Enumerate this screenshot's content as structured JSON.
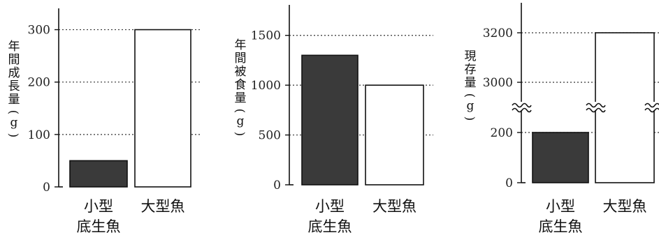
{
  "chart_data": [
    {
      "type": "bar",
      "ylabel": "年間成長量(g)",
      "categories": [
        "小型\n底生魚",
        "大型魚"
      ],
      "values": [
        50,
        300
      ],
      "yticks": [
        0,
        100,
        200,
        300
      ],
      "ylim": [
        0,
        330
      ],
      "fills": [
        "#3a3a3a",
        "#ffffff"
      ],
      "grid": true
    },
    {
      "type": "bar",
      "ylabel": "年間被食量(g)",
      "categories": [
        "小型\n底生魚",
        "大型魚"
      ],
      "values": [
        1300,
        1000
      ],
      "yticks": [
        0,
        500,
        1000,
        1500
      ],
      "ylim": [
        0,
        1750
      ],
      "fills": [
        "#3a3a3a",
        "#ffffff"
      ],
      "grid": true
    },
    {
      "type": "bar",
      "ylabel": "現存量(g)",
      "categories": [
        "小型\n底生魚",
        "大型魚"
      ],
      "values": [
        200,
        3200
      ],
      "yticks": [
        0,
        200,
        3000,
        3200
      ],
      "axis_break": true,
      "fills": [
        "#3a3a3a",
        "#ffffff"
      ],
      "grid": true
    }
  ]
}
